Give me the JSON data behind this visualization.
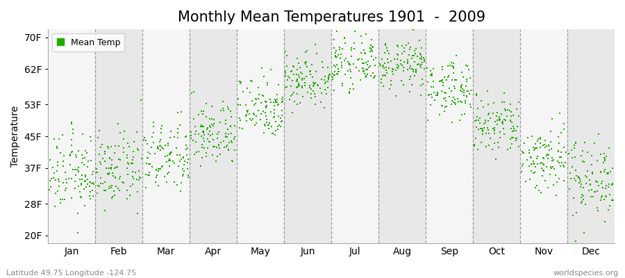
{
  "title": "Monthly Mean Temperatures 1901  -  2009",
  "ylabel": "Temperature",
  "xlabel_bottom_left": "Latitude 49.75 Longitude -124.75",
  "xlabel_bottom_right": "worldspecies.org",
  "ytick_labels": [
    "20F",
    "28F",
    "37F",
    "45F",
    "53F",
    "62F",
    "70F"
  ],
  "ytick_values": [
    20,
    28,
    37,
    45,
    53,
    62,
    70
  ],
  "ylim": [
    18,
    72
  ],
  "months": [
    "Jan",
    "Feb",
    "Mar",
    "Apr",
    "May",
    "Jun",
    "Jul",
    "Aug",
    "Sep",
    "Oct",
    "Nov",
    "Dec"
  ],
  "month_centers": [
    0.5,
    1.5,
    2.5,
    3.5,
    4.5,
    5.5,
    6.5,
    7.5,
    8.5,
    9.5,
    10.5,
    11.5
  ],
  "scatter_color": "#22AA00",
  "scatter_marker": "s",
  "scatter_size": 4,
  "bg_color_light": "#F5F5F5",
  "bg_color_dark": "#E8E8E8",
  "title_fontsize": 15,
  "axis_label_fontsize": 10,
  "tick_fontsize": 10,
  "legend_label": "Mean Temp",
  "monthly_mean_F": [
    35.5,
    36.5,
    39.5,
    45.5,
    52.5,
    59.5,
    63.5,
    63.0,
    57.0,
    47.5,
    39.5,
    34.5
  ],
  "monthly_std_F": [
    5.0,
    4.5,
    4.5,
    4.0,
    4.0,
    3.5,
    3.0,
    3.0,
    3.5,
    4.0,
    4.5,
    5.0
  ],
  "n_years": 109
}
